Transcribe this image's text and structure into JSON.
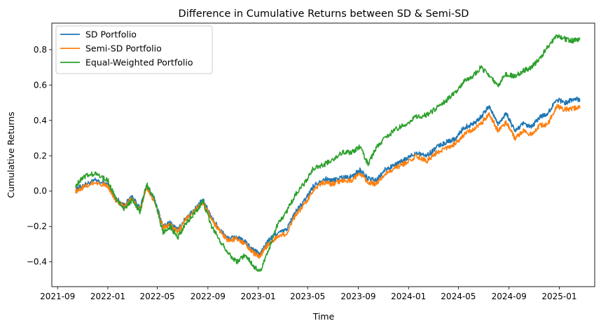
{
  "chart_data": {
    "type": "line",
    "title": "Difference in Cumulative Returns between SD & Semi-SD",
    "xlabel": "Time",
    "ylabel": "Cumulative Returns",
    "x_ticks": [
      "2021-09",
      "2022-01",
      "2022-05",
      "2022-09",
      "2023-01",
      "2023-05",
      "2023-09",
      "2024-01",
      "2024-05",
      "2024-09",
      "2025-01"
    ],
    "y_ticks": [
      -0.4,
      -0.2,
      0.0,
      0.2,
      0.4,
      0.6,
      0.8
    ],
    "y_tick_labels": [
      "−0.4",
      "−0.2",
      "0.0",
      "0.2",
      "0.4",
      "0.6",
      "0.8"
    ],
    "xlim": [
      "2021-08-18",
      "2025-03-28"
    ],
    "ylim": [
      -0.54,
      0.95
    ],
    "grid": false,
    "legend_position": "upper-left",
    "x": [
      "2021-10-15",
      "2021-11-01",
      "2021-12-01",
      "2022-01-01",
      "2022-01-20",
      "2022-02-10",
      "2022-03-01",
      "2022-03-20",
      "2022-04-05",
      "2022-04-25",
      "2022-05-15",
      "2022-06-01",
      "2022-06-20",
      "2022-07-10",
      "2022-08-01",
      "2022-08-20",
      "2022-09-10",
      "2022-10-01",
      "2022-10-20",
      "2022-11-10",
      "2022-12-01",
      "2022-12-20",
      "2023-01-05",
      "2023-01-25",
      "2023-02-15",
      "2023-03-10",
      "2023-04-01",
      "2023-04-25",
      "2023-05-15",
      "2023-06-10",
      "2023-07-01",
      "2023-07-25",
      "2023-08-15",
      "2023-09-05",
      "2023-09-25",
      "2023-10-15",
      "2023-11-05",
      "2023-12-01",
      "2023-12-25",
      "2024-01-20",
      "2024-02-15",
      "2024-03-10",
      "2024-04-05",
      "2024-04-25",
      "2024-05-15",
      "2024-06-05",
      "2024-06-25",
      "2024-07-15",
      "2024-08-05",
      "2024-08-25",
      "2024-09-15",
      "2024-10-05",
      "2024-10-25",
      "2024-11-15",
      "2024-12-05",
      "2024-12-25",
      "2025-01-15",
      "2025-02-05",
      "2025-02-20"
    ],
    "series": [
      {
        "name": "SD Portfolio",
        "color": "#1f77b4",
        "values": [
          0.01,
          0.03,
          0.06,
          0.04,
          -0.04,
          -0.08,
          -0.03,
          -0.1,
          0.03,
          -0.05,
          -0.2,
          -0.18,
          -0.22,
          -0.15,
          -0.1,
          -0.05,
          -0.15,
          -0.22,
          -0.27,
          -0.26,
          -0.29,
          -0.33,
          -0.36,
          -0.28,
          -0.24,
          -0.22,
          -0.12,
          -0.05,
          0.03,
          0.07,
          0.06,
          0.08,
          0.08,
          0.12,
          0.07,
          0.06,
          0.12,
          0.15,
          0.18,
          0.22,
          0.2,
          0.25,
          0.28,
          0.3,
          0.36,
          0.38,
          0.42,
          0.48,
          0.38,
          0.44,
          0.34,
          0.38,
          0.36,
          0.42,
          0.44,
          0.52,
          0.5,
          0.52,
          0.52
        ]
      },
      {
        "name": "Semi-SD Portfolio",
        "color": "#ff7f0e",
        "values": [
          0.0,
          0.02,
          0.05,
          0.03,
          -0.05,
          -0.09,
          -0.04,
          -0.11,
          0.02,
          -0.06,
          -0.21,
          -0.19,
          -0.23,
          -0.16,
          -0.11,
          -0.06,
          -0.16,
          -0.23,
          -0.28,
          -0.27,
          -0.3,
          -0.35,
          -0.37,
          -0.3,
          -0.26,
          -0.24,
          -0.14,
          -0.07,
          0.01,
          0.05,
          0.04,
          0.06,
          0.06,
          0.1,
          0.05,
          0.04,
          0.1,
          0.13,
          0.16,
          0.2,
          0.17,
          0.22,
          0.25,
          0.27,
          0.32,
          0.35,
          0.38,
          0.44,
          0.34,
          0.39,
          0.3,
          0.34,
          0.32,
          0.37,
          0.38,
          0.48,
          0.46,
          0.47,
          0.47
        ]
      },
      {
        "name": "Equal-Weighted Portfolio",
        "color": "#2ca02c",
        "values": [
          0.03,
          0.08,
          0.1,
          0.06,
          -0.04,
          -0.1,
          -0.05,
          -0.12,
          0.04,
          -0.05,
          -0.24,
          -0.2,
          -0.26,
          -0.18,
          -0.12,
          -0.06,
          -0.2,
          -0.28,
          -0.35,
          -0.4,
          -0.36,
          -0.42,
          -0.46,
          -0.34,
          -0.2,
          -0.12,
          -0.02,
          0.05,
          0.13,
          0.15,
          0.18,
          0.22,
          0.22,
          0.25,
          0.15,
          0.25,
          0.3,
          0.35,
          0.38,
          0.42,
          0.43,
          0.47,
          0.52,
          0.56,
          0.62,
          0.65,
          0.7,
          0.65,
          0.6,
          0.66,
          0.65,
          0.68,
          0.7,
          0.75,
          0.82,
          0.88,
          0.86,
          0.85,
          0.86
        ]
      }
    ]
  }
}
